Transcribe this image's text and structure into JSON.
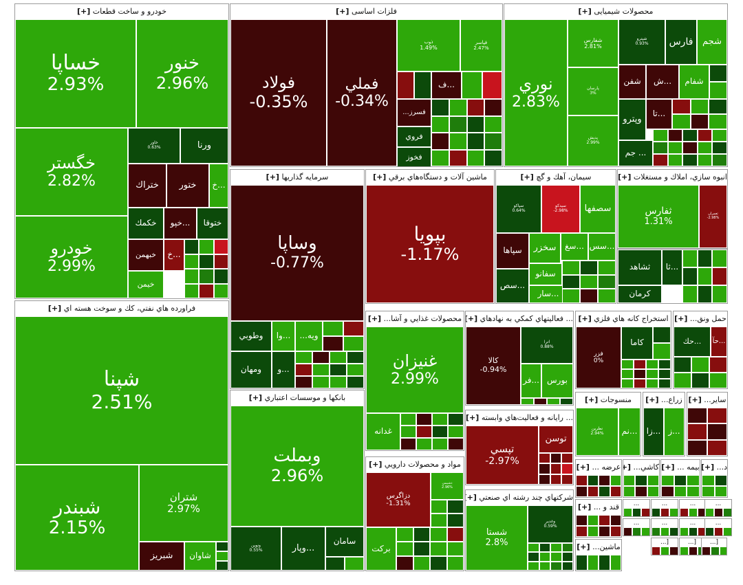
{
  "colors": {
    "green": "#2ea80a",
    "mid_green": "#1f7d0c",
    "dark_green": "#0c4a0a",
    "dark_red": "#3f0707",
    "red": "#870e0e",
    "bright_red": "#c8141e"
  },
  "expand_marker": "[+]",
  "sectors": {
    "auto": {
      "title": "خودرو و ساخت قطعات",
      "tiles": [
        {
          "symbol": "خساپا",
          "value": "2.93%"
        },
        {
          "symbol": "خنور",
          "value": "2.96%"
        },
        {
          "symbol": "خگستر",
          "value": "2.82%"
        },
        {
          "symbol": "خودرو",
          "value": "2.99%"
        },
        {
          "symbol": "خاور",
          "value": "0.63%"
        },
        {
          "symbol": "ورنا",
          "value": ""
        },
        {
          "symbol": "ختراك",
          "value": ""
        },
        {
          "symbol": "ختور",
          "value": ""
        },
        {
          "symbol": "خ...",
          "value": ""
        },
        {
          "symbol": "خكمك",
          "value": ""
        },
        {
          "symbol": "خپو...",
          "value": ""
        },
        {
          "symbol": "ختوقا",
          "value": ""
        },
        {
          "symbol": "خبهمن",
          "value": ""
        },
        {
          "symbol": "خ...",
          "value": ""
        },
        {
          "symbol": "خيمن",
          "value": ""
        }
      ]
    },
    "metals": {
      "title": "فلزات اساسی",
      "tiles": [
        {
          "symbol": "فولاد",
          "value": "-0.35%"
        },
        {
          "symbol": "فملي",
          "value": "-0.34%"
        },
        {
          "symbol": "ذوب",
          "value": "1.49%"
        },
        {
          "symbol": "فپاسر",
          "value": "2.47%"
        },
        {
          "symbol": "ف...",
          "value": ""
        },
        {
          "symbol": "...فسرز",
          "value": ""
        },
        {
          "symbol": "فروي",
          "value": ""
        },
        {
          "symbol": "فخوز",
          "value": ""
        }
      ]
    },
    "chemicals": {
      "title": "محصولات شیمیایی",
      "tiles": [
        {
          "symbol": "نوري",
          "value": "2.83%"
        },
        {
          "symbol": "شفارس",
          "value": "2.81%"
        },
        {
          "symbol": "پارسان",
          "value": "3%"
        },
        {
          "symbol": "پديش",
          "value": "2.99%"
        },
        {
          "symbol": "شپترو",
          "value": "0.93%"
        },
        {
          "symbol": "فارس",
          "value": ""
        },
        {
          "symbol": "شجم",
          "value": ""
        },
        {
          "symbol": "شفن",
          "value": ""
        },
        {
          "symbol": "ش...",
          "value": ""
        },
        {
          "symbol": "شفام",
          "value": ""
        },
        {
          "symbol": "تا...",
          "value": ""
        },
        {
          "symbol": "وپترو",
          "value": ""
        },
        {
          "symbol": "جم ...",
          "value": ""
        }
      ]
    },
    "oil": {
      "title": "فراورده هاي نفتي، كك و سوخت هسته اي",
      "tiles": [
        {
          "symbol": "شپنا",
          "value": "2.51%"
        },
        {
          "symbol": "شبندر",
          "value": "2.15%"
        },
        {
          "symbol": "شتران",
          "value": "2.97%"
        },
        {
          "symbol": "شبريز",
          "value": ""
        },
        {
          "symbol": "شاوان",
          "value": ""
        }
      ]
    },
    "investment": {
      "title": "سرمايه گذاريها",
      "tiles": [
        {
          "symbol": "وساپا",
          "value": "-0.77%"
        },
        {
          "symbol": "وطوبي",
          "value": ""
        },
        {
          "symbol": "وا...",
          "value": ""
        },
        {
          "symbol": "...ويه",
          "value": ""
        },
        {
          "symbol": "ومهان",
          "value": ""
        },
        {
          "symbol": "و...",
          "value": ""
        }
      ]
    },
    "machinery": {
      "title": "ماشين آلات و دستگاه‌هاي برقي",
      "tiles": [
        {
          "symbol": "بپويا",
          "value": "-1.17%"
        }
      ]
    },
    "cement": {
      "title": "سيمان، آهك و گچ",
      "tiles": [
        {
          "symbol": "سپاكو",
          "value": "0.64%"
        },
        {
          "symbol": "سيدكو",
          "value": "-2.98%"
        },
        {
          "symbol": "سصفها",
          "value": ""
        },
        {
          "symbol": "سپاها",
          "value": ""
        },
        {
          "symbol": "سخزر",
          "value": ""
        },
        {
          "symbol": "سغ...",
          "value": ""
        },
        {
          "symbol": "سس...",
          "value": ""
        },
        {
          "symbol": "سفانو",
          "value": ""
        },
        {
          "symbol": "سص...",
          "value": ""
        },
        {
          "symbol": "سار...",
          "value": ""
        }
      ]
    },
    "real_estate": {
      "title": "انبوه سازي، املاك و مستغلات",
      "tiles": [
        {
          "symbol": "ثفارس",
          "value": "1.31%"
        },
        {
          "symbol": "ثعمران",
          "value": "-2.98%"
        },
        {
          "symbol": "ثشاهد",
          "value": ""
        },
        {
          "symbol": "ثا...",
          "value": ""
        },
        {
          "symbol": "كرمان",
          "value": ""
        }
      ]
    },
    "banks": {
      "title": "بانكها و موسسات اعتباري",
      "tiles": [
        {
          "symbol": "وبملت",
          "value": "2.96%"
        },
        {
          "symbol": "ونوين",
          "value": "0.55%"
        },
        {
          "symbol": "وپار...",
          "value": ""
        },
        {
          "symbol": "سامان",
          "value": ""
        }
      ]
    },
    "food": {
      "title": "محصولات غذايي و آشا...",
      "tiles": [
        {
          "symbol": "غنيزان",
          "value": "2.99%"
        },
        {
          "symbol": "غدانه",
          "value": ""
        }
      ]
    },
    "pharma": {
      "title": "مواد و محصولات دارويي",
      "tiles": [
        {
          "symbol": "دزاگرس",
          "value": "-1.31%"
        },
        {
          "symbol": "دشيمي",
          "value": "2.96%"
        },
        {
          "symbol": "بركت",
          "value": ""
        }
      ]
    },
    "services": {
      "title": "... فعاليتهاي كمكي به نهادهاي",
      "tiles": [
        {
          "symbol": "كالا",
          "value": "-0.94%"
        },
        {
          "symbol": "اترا",
          "value": "0.88%"
        },
        {
          "symbol": "بورس",
          "value": ""
        },
        {
          "symbol": "فر...",
          "value": ""
        }
      ]
    },
    "computer": {
      "title": "... رايانه و فعاليت‌هاي وابسته",
      "tiles": [
        {
          "symbol": "تپسي",
          "value": "-2.97%"
        },
        {
          "symbol": "توسن",
          "value": ""
        }
      ]
    },
    "multi": {
      "title": "شركتهاي چند رشته اي صنعتي",
      "tiles": [
        {
          "symbol": "شستا",
          "value": "2.8%"
        },
        {
          "symbol": "وغدير",
          "value": "0.59%"
        }
      ]
    },
    "mining_metal": {
      "title": "استخراج كانه هاي فلزي",
      "tiles": [
        {
          "symbol": "فزر",
          "value": "0%"
        },
        {
          "symbol": "كاما",
          "value": ""
        }
      ]
    },
    "transport": {
      "title": "حمل ونق...",
      "tiles": [
        {
          "symbol": "حك...",
          "value": ""
        },
        {
          "symbol": "حآ...",
          "value": ""
        }
      ]
    },
    "textiles": {
      "title": "منسوجات",
      "tiles": [
        {
          "symbol": "نطرين",
          "value": "2.94%"
        },
        {
          "symbol": "نم...",
          "value": ""
        }
      ]
    },
    "agri": {
      "title": "زراع...",
      "tiles": [
        {
          "symbol": "زا...",
          "value": ""
        },
        {
          "symbol": "ز...",
          "value": ""
        }
      ]
    },
    "other": {
      "title": "ساير...",
      "tiles": []
    },
    "supply": {
      "title": "عرضه ...",
      "tiles": []
    },
    "tiles_ceramic": {
      "title": "كاشي...",
      "tiles": []
    },
    "insurance": {
      "title": "بيمه ...",
      "tiles": []
    },
    "small1": {
      "title": "د...",
      "tiles": []
    },
    "sugar": {
      "title": "قند و ...",
      "tiles": []
    },
    "machinery2": {
      "title": "ماشين...",
      "tiles": []
    },
    "tiny": {
      "labels": [
        "...",
        "...",
        "...",
        "...",
        "...",
        "...",
        "...",
        "...",
        "[...",
        "[...",
        "[..."
      ]
    }
  }
}
